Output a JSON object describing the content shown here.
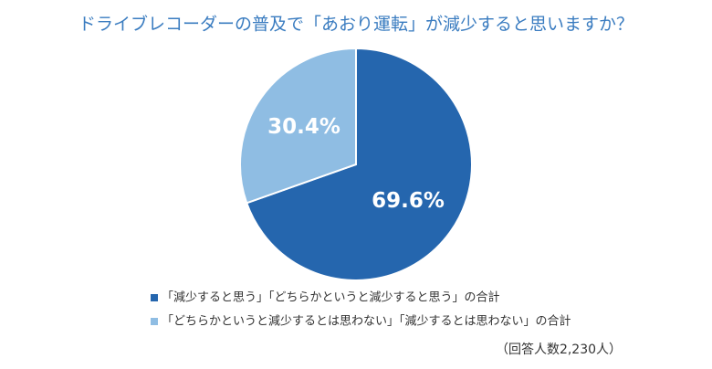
{
  "chart_data": {
    "type": "pie",
    "title": "ドライブレコーダーの普及で「あおり運転」が減少すると思いますか？",
    "categories": [
      "「減少すると思う」「どちらかというと減少すると思う」の合計",
      "「どちらかというと減少するとは思わない」「減少するとは思わない」の合計"
    ],
    "values": [
      69.6,
      30.4
    ],
    "value_labels": [
      "69.6%",
      "30.4%"
    ],
    "colors": [
      "#2566ae",
      "#8fbde3"
    ],
    "note": "（回答人数2,230人）"
  }
}
